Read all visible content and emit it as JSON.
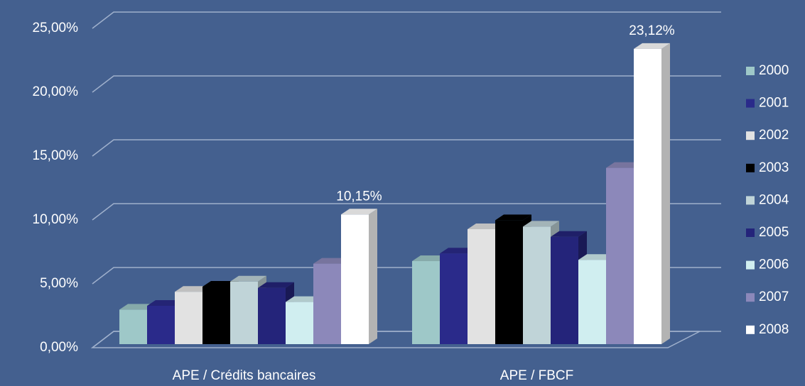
{
  "chart_data": {
    "type": "bar",
    "categories": [
      "APE / Crédits bancaires",
      "APE / FBCF"
    ],
    "series": [
      {
        "name": "2000",
        "color": "#9ec8c8",
        "values": [
          2.7,
          6.5
        ]
      },
      {
        "name": "2001",
        "color": "#2a2a8a",
        "values": [
          3.0,
          7.1
        ]
      },
      {
        "name": "2002",
        "color": "#e2e2e2",
        "values": [
          4.1,
          9.0
        ]
      },
      {
        "name": "2003",
        "color": "#000000",
        "values": [
          4.5,
          9.7
        ]
      },
      {
        "name": "2004",
        "color": "#c0d4d8",
        "values": [
          4.9,
          9.2
        ]
      },
      {
        "name": "2005",
        "color": "#24247a",
        "values": [
          4.4,
          8.4
        ]
      },
      {
        "name": "2006",
        "color": "#d0eef0",
        "values": [
          3.3,
          6.6
        ]
      },
      {
        "name": "2007",
        "color": "#8c88ba",
        "values": [
          6.3,
          13.8
        ]
      },
      {
        "name": "2008",
        "color": "#ffffff",
        "values": [
          10.15,
          23.12
        ],
        "value_labels": [
          "10,15%",
          "23,12%"
        ]
      }
    ],
    "ylim": [
      0,
      25
    ],
    "yticks": [
      {
        "value": 0,
        "label": "0,00%"
      },
      {
        "value": 5,
        "label": "5,00%"
      },
      {
        "value": 10,
        "label": "10,00%"
      },
      {
        "value": 15,
        "label": "15,00%"
      },
      {
        "value": 20,
        "label": "20,00%"
      },
      {
        "value": 25,
        "label": "25,00%"
      }
    ],
    "grid": true,
    "legend": "right"
  }
}
